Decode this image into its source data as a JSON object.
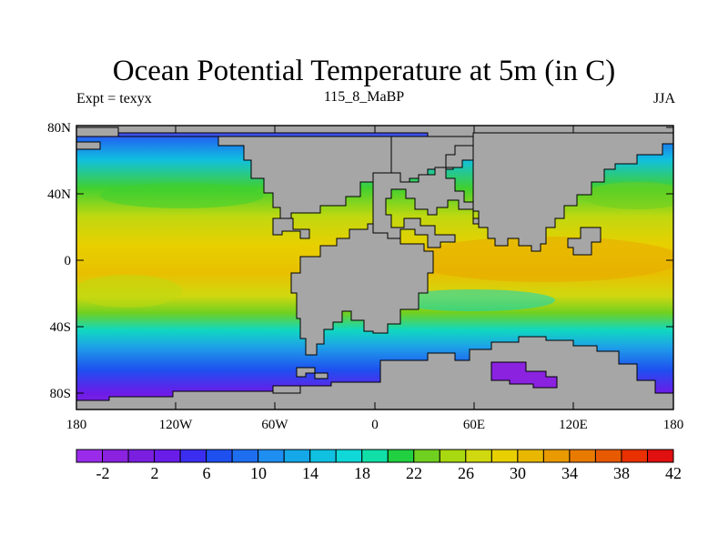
{
  "title": "Ocean Potential Temperature at 5m (in C)",
  "subtitle_left": "Expt = texyx",
  "subtitle_center": "115_8_MaBP",
  "subtitle_right": "JJA",
  "lat_ticks": [
    "80N",
    "40N",
    "0",
    "40S",
    "80S"
  ],
  "lon_ticks": [
    "180",
    "120W",
    "60W",
    "0",
    "60E",
    "120E",
    "180"
  ],
  "colorbar": {
    "labels": [
      "-2",
      "2",
      "6",
      "10",
      "14",
      "18",
      "22",
      "26",
      "30",
      "34",
      "38",
      "42"
    ],
    "colors": [
      "#9a2bea",
      "#8a22e0",
      "#7a1fe0",
      "#6a1ce8",
      "#3c2ef0",
      "#1e50f0",
      "#1e6ef0",
      "#1e8ef0",
      "#14a8e8",
      "#10c0e0",
      "#10d8d8",
      "#10e0a8",
      "#20d040",
      "#70d020",
      "#a8d810",
      "#d0d810",
      "#e8d000",
      "#e8b800",
      "#e89a00",
      "#e87a00",
      "#e85a00",
      "#e83000",
      "#e01010"
    ]
  },
  "colors": {
    "land": "#a6a6a6",
    "coast": "#000000"
  }
}
